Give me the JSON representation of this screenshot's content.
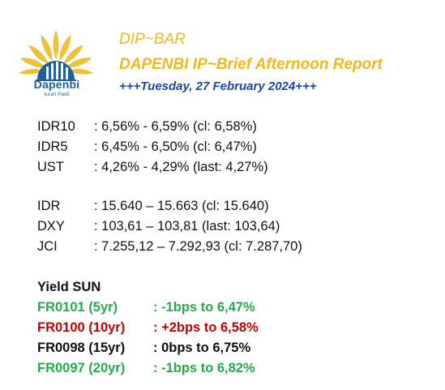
{
  "logo": {
    "name": "Dapenbi",
    "tagline": "Iuran Pasti"
  },
  "header": {
    "title": "DIP~BAR",
    "subtitle": "DAPENBI IP~Brief Afternoon Report",
    "date_line": "+++Tuesday, 27 February 2024+++"
  },
  "rates": [
    {
      "label": "IDR10",
      "value": ": 6,56% - 6,59% (cl: 6,58%)"
    },
    {
      "label": "IDR5",
      "value": ": 6,45% - 6,50% (cl: 6,47%)"
    },
    {
      "label": "UST",
      "value": ": 4,26% - 4,29% (last: 4,27%)"
    }
  ],
  "markets": [
    {
      "label": "IDR",
      "value": ": 15.640 – 15.663 (cl: 15.640)"
    },
    {
      "label": "DXY",
      "value": ": 103,61 – 103,81 (last: 103,64)"
    },
    {
      "label": "JCI",
      "value": ": 7.255,12 – 7.292,93 (cl: 7.287,70)"
    }
  ],
  "yield": {
    "heading": "Yield SUN",
    "items": [
      {
        "label": "FR0101 (5yr)",
        "value": ": -1bps to 6,47%",
        "color": "#27a84a"
      },
      {
        "label": "FR0100 (10yr)",
        "value": ": +2bps to 6,58%",
        "color": "#c00000"
      },
      {
        "label": "FR0098 (15yr)",
        "value": ": 0bps to 6,75%",
        "color": "#111111"
      },
      {
        "label": "FR0097 (20yr)",
        "value": ": -1bps to 6,82%",
        "color": "#27a84a"
      }
    ]
  },
  "colors": {
    "header_gold": "#f0b81c",
    "date_blue": "#1a46a4",
    "logo_blue": "#1f5f9e"
  }
}
